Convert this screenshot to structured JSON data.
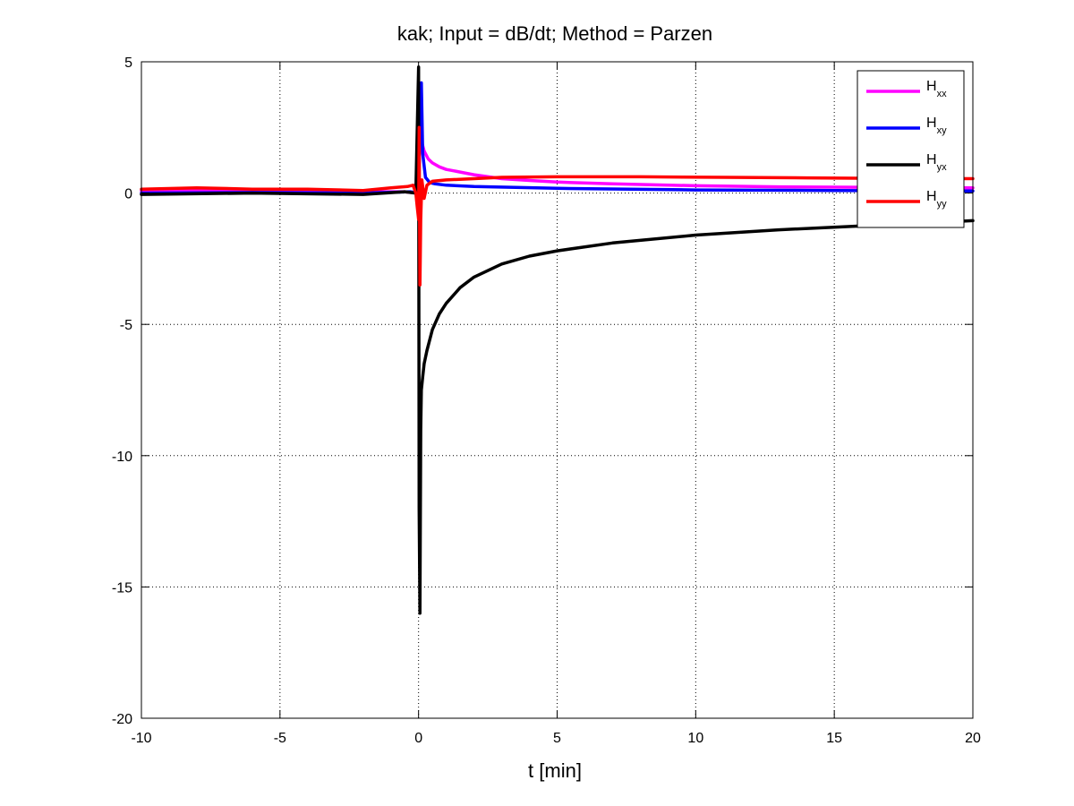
{
  "chart_data": {
    "type": "line",
    "title": "kak; Input = dB/dt; Method = Parzen",
    "xlabel": "t [min]",
    "ylabel": "",
    "xlim": [
      -10,
      20
    ],
    "ylim": [
      -20,
      5
    ],
    "xticks": [
      -10,
      -5,
      0,
      5,
      10,
      15,
      20
    ],
    "yticks": [
      5,
      0,
      -5,
      -10,
      -15,
      -20
    ],
    "xtick_labels": [
      "-10",
      "-5",
      "0",
      "5",
      "10",
      "15",
      "20"
    ],
    "ytick_labels": [
      "5",
      "0",
      "-5",
      "-10",
      "-15",
      "-20"
    ],
    "grid": true,
    "legend_position": "top-right",
    "series": [
      {
        "name": "Hxx",
        "base": "H",
        "sub": "xx",
        "color": "#ff00ff",
        "x": [
          -10,
          -8,
          -6,
          -4,
          -2,
          -0.5,
          -0.1,
          0,
          0.05,
          0.1,
          0.2,
          0.35,
          0.5,
          0.75,
          1,
          1.5,
          2,
          3,
          4,
          5,
          7,
          10,
          13,
          16,
          20
        ],
        "y": [
          0.1,
          0.1,
          0.1,
          0.08,
          0.05,
          0.05,
          0.0,
          -0.3,
          2.6,
          2.0,
          1.6,
          1.3,
          1.15,
          1.0,
          0.9,
          0.8,
          0.7,
          0.55,
          0.48,
          0.42,
          0.35,
          0.28,
          0.24,
          0.22,
          0.2
        ]
      },
      {
        "name": "Hxy",
        "base": "H",
        "sub": "xy",
        "color": "#0000ff",
        "x": [
          -10,
          -6,
          -2,
          -0.3,
          0,
          0.05,
          0.1,
          0.15,
          0.25,
          0.4,
          0.6,
          1,
          2,
          5,
          10,
          15,
          20
        ],
        "y": [
          0.0,
          0.02,
          0.0,
          0.05,
          0.0,
          3.0,
          4.2,
          1.5,
          0.6,
          0.4,
          0.35,
          0.3,
          0.25,
          0.18,
          0.12,
          0.1,
          0.08
        ]
      },
      {
        "name": "Hyx",
        "base": "H",
        "sub": "yx",
        "color": "#000000",
        "x": [
          -10,
          -6,
          -2,
          -0.5,
          -0.1,
          0,
          0.02,
          0.05,
          0.08,
          0.1,
          0.15,
          0.2,
          0.3,
          0.5,
          0.75,
          1,
          1.5,
          2,
          3,
          4,
          5,
          7,
          10,
          13,
          16,
          20
        ],
        "y": [
          -0.05,
          0.0,
          -0.05,
          0.05,
          0.0,
          4.8,
          -12.0,
          -16.0,
          -9.0,
          -7.5,
          -7.0,
          -6.5,
          -6.0,
          -5.2,
          -4.6,
          -4.2,
          -3.6,
          -3.2,
          -2.7,
          -2.4,
          -2.2,
          -1.9,
          -1.6,
          -1.4,
          -1.25,
          -1.05
        ]
      },
      {
        "name": "Hyy",
        "base": "H",
        "sub": "yy",
        "color": "#ff0000",
        "x": [
          -10,
          -8,
          -6,
          -4,
          -2,
          -1,
          -0.4,
          -0.2,
          -0.1,
          -0.05,
          0,
          0.02,
          0.05,
          0.08,
          0.12,
          0.2,
          0.3,
          0.5,
          1,
          2,
          3,
          5,
          8,
          11,
          14,
          17,
          20
        ],
        "y": [
          0.15,
          0.2,
          0.15,
          0.15,
          0.1,
          0.2,
          0.25,
          0.3,
          0.0,
          -0.5,
          -1.0,
          2.5,
          -3.5,
          -1.0,
          0.5,
          -0.2,
          0.3,
          0.45,
          0.5,
          0.55,
          0.6,
          0.62,
          0.62,
          0.6,
          0.58,
          0.56,
          0.55
        ]
      }
    ]
  }
}
